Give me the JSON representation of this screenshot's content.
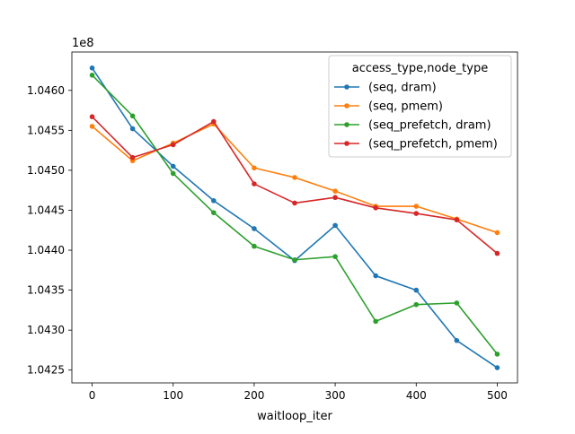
{
  "chart_data": {
    "type": "line",
    "title": "",
    "xlabel": "waitloop_iter",
    "ylabel": "",
    "offset_label": "1e8",
    "x": [
      0,
      50,
      100,
      150,
      200,
      250,
      300,
      350,
      400,
      450,
      500
    ],
    "xlim": [
      -25,
      525
    ],
    "ylim": [
      104234000,
      104648000
    ],
    "x_ticks": [
      0,
      100,
      200,
      300,
      400,
      500
    ],
    "x_tick_labels": [
      "0",
      "100",
      "200",
      "300",
      "400",
      "500"
    ],
    "y_ticks": [
      104250000,
      104300000,
      104350000,
      104400000,
      104450000,
      104500000,
      104550000,
      104600000
    ],
    "y_tick_labels": [
      "1.0425",
      "1.0430",
      "1.0435",
      "1.0440",
      "1.0445",
      "1.0450",
      "1.0455",
      "1.0460"
    ],
    "grid": false,
    "legend": {
      "title": "access_type,node_type",
      "placement": "upper right"
    },
    "series": [
      {
        "name": "(seq, dram)",
        "color": "#1f77b4",
        "values": [
          104628000,
          104552000,
          104505000,
          104462000,
          104427000,
          104387000,
          104431000,
          104368000,
          104350000,
          104287000,
          104253000
        ]
      },
      {
        "name": "(seq, pmem)",
        "color": "#ff7f0e",
        "values": [
          104555000,
          104512000,
          104534000,
          104558000,
          104503000,
          104491000,
          104474000,
          104455000,
          104455000,
          104439000,
          104422000
        ]
      },
      {
        "name": "(seq_prefetch, dram)",
        "color": "#2ca02c",
        "values": [
          104619000,
          104568000,
          104496000,
          104447000,
          104405000,
          104388000,
          104392000,
          104311000,
          104332000,
          104334000,
          104270000
        ]
      },
      {
        "name": "(seq_prefetch, pmem)",
        "color": "#d62728",
        "values": [
          104567000,
          104516000,
          104532000,
          104561000,
          104483000,
          104459000,
          104466000,
          104453000,
          104446000,
          104438000,
          104396000
        ]
      }
    ]
  }
}
